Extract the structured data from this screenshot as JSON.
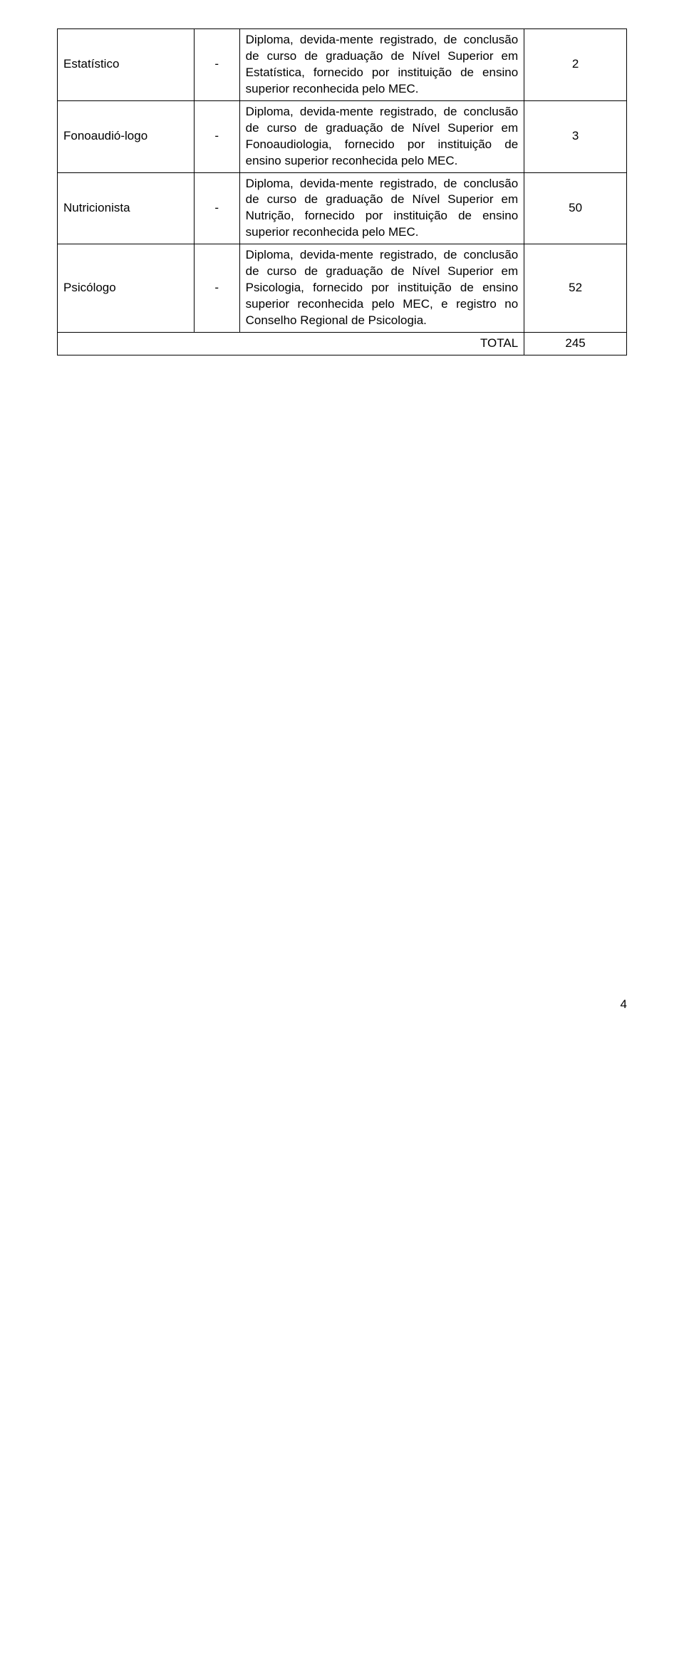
{
  "rows": [
    {
      "role": "Estatístico",
      "dash": "-",
      "req": "Diploma, devida-mente registrado, de conclusão de curso de graduação de Nível Superior em Estatística, fornecido por instituição de ensino superior reconhecida pelo MEC.",
      "count": "2"
    },
    {
      "role": "Fonoaudió-logo",
      "dash": "-",
      "req": "Diploma, devida-mente registrado, de conclusão de curso de graduação de Nível Superior em Fonoaudiologia, fornecido por instituição de ensino superior reconhecida pelo MEC.",
      "count": "3"
    },
    {
      "role": "Nutricionista",
      "dash": "-",
      "req": "Diploma, devida-mente registrado, de conclusão de curso de graduação de Nível Superior em Nutrição, fornecido por instituição de ensino superior reconhecida pelo MEC.",
      "count": "50"
    },
    {
      "role": "Psicólogo",
      "dash": "-",
      "req": "Diploma, devida-mente registrado, de conclusão de curso de graduação de Nível Superior em Psicologia, fornecido por instituição de ensino superior reconhecida pelo MEC, e registro no Conselho Regional de Psicologia.",
      "count": "52"
    }
  ],
  "total": {
    "label": "TOTAL",
    "value": "245"
  },
  "page_number": "4",
  "style": {
    "font_family": "Arial",
    "font_size_pt": 13,
    "text_color": "#000000",
    "background_color": "#ffffff",
    "border_color": "#000000",
    "col_widths_pct": [
      24,
      8,
      50,
      18
    ]
  }
}
